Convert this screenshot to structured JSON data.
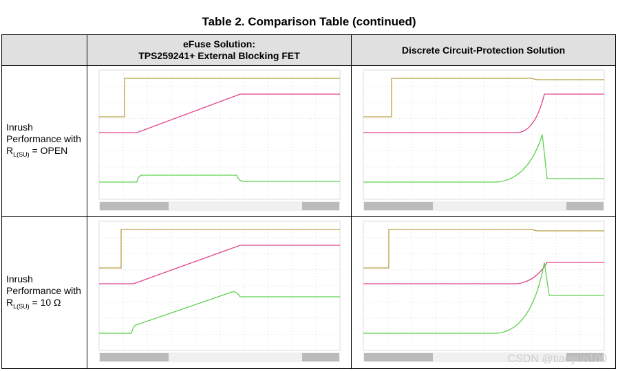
{
  "title": "Table 2. Comparison Table (continued)",
  "table": {
    "header": [
      "",
      [
        "eFuse Solution:",
        "TPS259241+ External Blocking FET"
      ],
      "Discrete Circuit-Protection Solution"
    ],
    "rows": [
      [
        "Inrush Performance with R",
        "L(SU)",
        " = OPEN"
      ],
      [
        "Inrush Performance with R",
        "L(SU)",
        " = 10 Ω"
      ]
    ]
  },
  "watermark": "CSDN @tianyue100"
}
